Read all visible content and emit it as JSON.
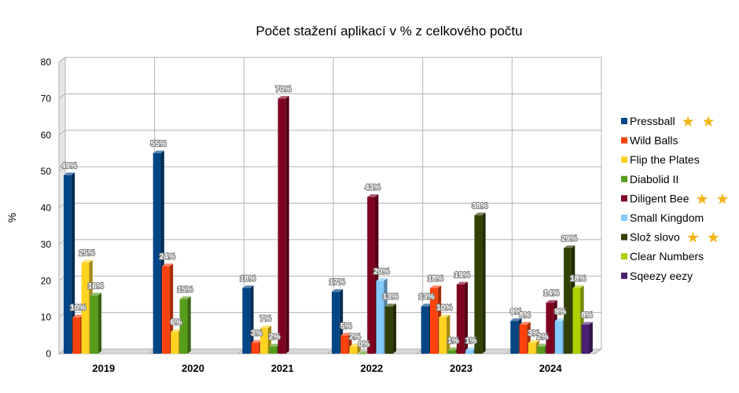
{
  "chart_data": {
    "type": "bar",
    "title": "Počet stažení aplikací v % z celkového počtu",
    "xlabel": "",
    "ylabel": "%",
    "ylim": [
      0,
      80
    ],
    "yticks": [
      0,
      10,
      20,
      30,
      40,
      50,
      60,
      70,
      80
    ],
    "grid": "horizontal",
    "legend": "right",
    "categories": [
      "2019",
      "2020",
      "2021",
      "2022",
      "2023",
      "2024"
    ],
    "series": [
      {
        "name": "Pressball",
        "color": "#004586",
        "stars": 2,
        "values": [
          49,
          55,
          18,
          17,
          13,
          9
        ],
        "labels": [
          "49%",
          "55%",
          "18%",
          "17%",
          "13%",
          "9%"
        ]
      },
      {
        "name": "Wild Balls",
        "color": "#ff420e",
        "stars": 0,
        "values": [
          10,
          24,
          3,
          5,
          18,
          8
        ],
        "labels": [
          "10%",
          "24%",
          "3%",
          "5%",
          "18%",
          "8%"
        ]
      },
      {
        "name": "Flip the Plates",
        "color": "#ffd320",
        "stars": 0,
        "values": [
          25,
          6,
          7,
          2,
          10,
          3
        ],
        "labels": [
          "25%",
          "6%",
          "7%",
          "2%",
          "10%",
          "3%"
        ]
      },
      {
        "name": "Diabolid II",
        "color": "#579d1c",
        "stars": 0,
        "values": [
          16,
          15,
          2,
          0,
          1,
          2
        ],
        "labels": [
          "16%",
          "15%",
          "2%",
          "0%",
          "1%",
          "2%"
        ]
      },
      {
        "name": "Diligent Bee",
        "color": "#7e0021",
        "stars": 2,
        "values": [
          null,
          null,
          70,
          43,
          19,
          14
        ],
        "labels": [
          "",
          "",
          "70%",
          "43%",
          "19%",
          "14%"
        ]
      },
      {
        "name": "Small Kingdom",
        "color": "#83caff",
        "stars": 0,
        "values": [
          null,
          null,
          null,
          20,
          1,
          9
        ],
        "labels": [
          "",
          "",
          "",
          "20%",
          "1%",
          "9%"
        ]
      },
      {
        "name": "Slož slovo",
        "color": "#314004",
        "stars": 2,
        "values": [
          null,
          null,
          null,
          13,
          38,
          29
        ],
        "labels": [
          "",
          "",
          "",
          "13%",
          "38%",
          "29%"
        ]
      },
      {
        "name": "Clear Numbers",
        "color": "#aecf00",
        "stars": 0,
        "values": [
          null,
          null,
          null,
          null,
          null,
          18
        ],
        "labels": [
          "",
          "",
          "",
          "",
          "",
          "18%"
        ]
      },
      {
        "name": "Sqeezy eezy",
        "color": "#4b1f6f",
        "stars": 0,
        "values": [
          null,
          null,
          null,
          null,
          null,
          8
        ],
        "labels": [
          "",
          "",
          "",
          "",
          "",
          "8%"
        ]
      }
    ]
  }
}
